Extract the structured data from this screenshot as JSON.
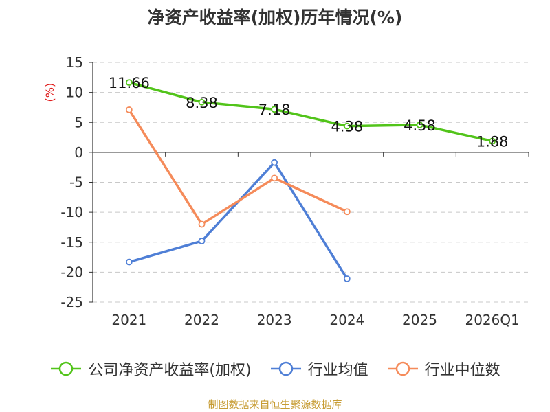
{
  "title": "净资产收益率(加权)历年情况(%)",
  "source": "制图数据来自恒生聚源数据库",
  "chart_data": {
    "type": "line",
    "title": "净资产收益率(加权)历年情况(%)",
    "ylabel": "(%)",
    "categories": [
      "2021",
      "2022",
      "2023",
      "2024",
      "2025",
      "2026Q1"
    ],
    "ylim": [
      -25,
      15
    ],
    "yticks": [
      15,
      10,
      5,
      0,
      -5,
      -10,
      -15,
      -20,
      -25
    ],
    "grid": true,
    "legend_position": "bottom",
    "series": [
      {
        "name": "公司净资产收益率(加权)",
        "color": "#52c41a",
        "values": [
          11.66,
          8.38,
          7.18,
          4.38,
          4.58,
          1.88
        ],
        "labels": [
          "11.66",
          "8.38",
          "7.18",
          "4.38",
          "4.58",
          "1.88"
        ]
      },
      {
        "name": "行业均值",
        "color": "#4f7fd6",
        "values": [
          -18.3,
          -14.8,
          -1.7,
          -21.1,
          null,
          null
        ]
      },
      {
        "name": "行业中位数",
        "color": "#f58b5a",
        "values": [
          7.1,
          -12.0,
          -4.3,
          -9.9,
          null,
          null
        ]
      }
    ]
  }
}
